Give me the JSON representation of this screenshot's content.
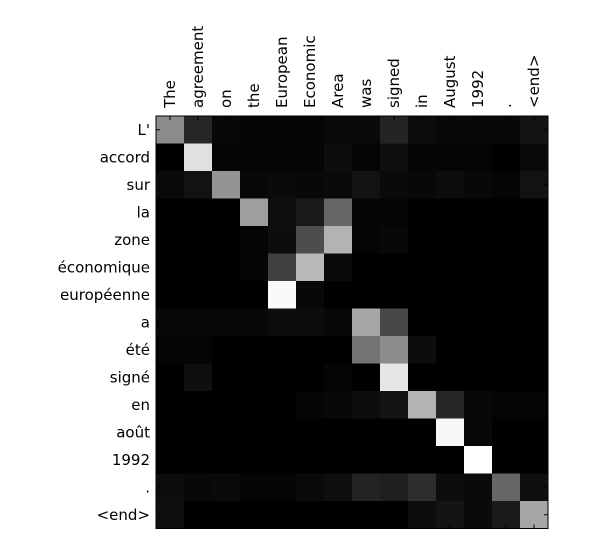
{
  "chart_data": {
    "type": "heatmap",
    "title": "",
    "xlabel": "",
    "ylabel": "",
    "colormap": "gray",
    "value_range": [
      0,
      1
    ],
    "x_labels": [
      "The",
      "agreement",
      "on",
      "the",
      "European",
      "Economic",
      "Area",
      "was",
      "signed",
      "in",
      "August",
      "1992",
      ".",
      "<end>"
    ],
    "y_labels": [
      "L'",
      "accord",
      "sur",
      "la",
      "zone",
      "économique",
      "européenne",
      "a",
      "été",
      "signé",
      "en",
      "août",
      "1992",
      ".",
      "<end>"
    ],
    "values": [
      [
        0.55,
        0.15,
        0.03,
        0.02,
        0.02,
        0.02,
        0.04,
        0.04,
        0.14,
        0.05,
        0.03,
        0.03,
        0.03,
        0.08
      ],
      [
        0.0,
        0.88,
        0.02,
        0.02,
        0.02,
        0.02,
        0.05,
        0.02,
        0.06,
        0.02,
        0.02,
        0.02,
        0.0,
        0.04
      ],
      [
        0.04,
        0.07,
        0.58,
        0.03,
        0.04,
        0.03,
        0.04,
        0.07,
        0.04,
        0.03,
        0.05,
        0.03,
        0.02,
        0.07
      ],
      [
        0.0,
        0.0,
        0.0,
        0.62,
        0.06,
        0.1,
        0.4,
        0.02,
        0.02,
        0.0,
        0.0,
        0.0,
        0.0,
        0.0
      ],
      [
        0.0,
        0.0,
        0.0,
        0.02,
        0.05,
        0.3,
        0.7,
        0.02,
        0.03,
        0.0,
        0.0,
        0.0,
        0.0,
        0.0
      ],
      [
        0.0,
        0.0,
        0.0,
        0.02,
        0.25,
        0.72,
        0.04,
        0.0,
        0.0,
        0.0,
        0.0,
        0.0,
        0.0,
        0.0
      ],
      [
        0.0,
        0.0,
        0.0,
        0.0,
        0.98,
        0.03,
        0.0,
        0.0,
        0.0,
        0.0,
        0.0,
        0.0,
        0.0,
        0.0
      ],
      [
        0.03,
        0.03,
        0.03,
        0.03,
        0.05,
        0.05,
        0.03,
        0.65,
        0.28,
        0.0,
        0.0,
        0.0,
        0.0,
        0.0
      ],
      [
        0.02,
        0.02,
        0.0,
        0.0,
        0.0,
        0.0,
        0.0,
        0.45,
        0.55,
        0.05,
        0.0,
        0.0,
        0.0,
        0.0
      ],
      [
        0.0,
        0.06,
        0.0,
        0.0,
        0.0,
        0.0,
        0.02,
        0.0,
        0.9,
        0.0,
        0.0,
        0.0,
        0.0,
        0.0
      ],
      [
        0.0,
        0.0,
        0.0,
        0.0,
        0.0,
        0.02,
        0.03,
        0.05,
        0.08,
        0.7,
        0.15,
        0.03,
        0.02,
        0.02
      ],
      [
        0.0,
        0.0,
        0.0,
        0.0,
        0.0,
        0.0,
        0.0,
        0.0,
        0.0,
        0.0,
        0.97,
        0.03,
        0.0,
        0.0
      ],
      [
        0.0,
        0.0,
        0.0,
        0.0,
        0.0,
        0.0,
        0.0,
        0.0,
        0.0,
        0.0,
        0.0,
        1.0,
        0.0,
        0.0
      ],
      [
        0.05,
        0.03,
        0.04,
        0.02,
        0.02,
        0.04,
        0.06,
        0.14,
        0.12,
        0.18,
        0.05,
        0.04,
        0.4,
        0.06
      ],
      [
        0.06,
        0.0,
        0.0,
        0.0,
        0.0,
        0.0,
        0.0,
        0.0,
        0.0,
        0.05,
        0.08,
        0.04,
        0.1,
        0.65
      ]
    ]
  }
}
